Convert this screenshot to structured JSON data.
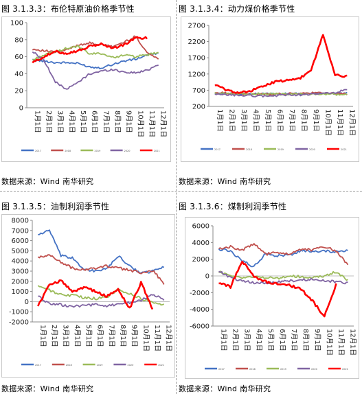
{
  "source_label": "数据来源：Wind 南华研究",
  "months": [
    "1月1日",
    "2月1日",
    "3月1日",
    "4月1日",
    "5月1日",
    "6月1日",
    "7月1日",
    "8月1日",
    "9月1日",
    "10月1日",
    "11月1日",
    "12月1日"
  ],
  "legend_years": [
    "2017",
    "2018",
    "2019",
    "2020",
    "2021"
  ],
  "colors": {
    "2017": "#4472c4",
    "2018": "#c0504d",
    "2019": "#9bbb59",
    "2020": "#8064a2",
    "2021": "#ff0000"
  },
  "chart_data": [
    {
      "type": "line",
      "title": "图 3.1.3.3：布伦特原油价格季节性",
      "x": [
        "1月1日",
        "2月1日",
        "3月1日",
        "4月1日",
        "5月1日",
        "6月1日",
        "7月1日",
        "8月1日",
        "9月1日",
        "10月1日",
        "11月1日",
        "12月1日"
      ],
      "ylim": [
        0,
        100
      ],
      "yticks": [
        0,
        20,
        40,
        60,
        80,
        100
      ],
      "series": [
        {
          "name": "2017",
          "values": [
            56,
            55,
            53,
            53,
            52,
            48,
            47,
            51,
            55,
            57,
            62,
            64
          ]
        },
        {
          "name": "2018",
          "values": [
            69,
            67,
            65,
            68,
            74,
            76,
            74,
            72,
            77,
            84,
            65,
            57
          ]
        },
        {
          "name": "2019",
          "values": [
            56,
            62,
            66,
            70,
            72,
            63,
            64,
            59,
            62,
            60,
            62,
            65
          ]
        },
        {
          "name": "2020",
          "values": [
            66,
            56,
            30,
            22,
            30,
            40,
            43,
            45,
            42,
            41,
            44,
            51
          ]
        },
        {
          "name": "2021",
          "values": [
            53,
            60,
            66,
            64,
            67,
            72,
            75,
            70,
            74,
            82,
            82,
            null
          ]
        }
      ]
    },
    {
      "type": "line",
      "title": "图 3.1.3.4：动力煤价格季节性",
      "x": [
        "1月1日",
        "2月1日",
        "3月1日",
        "4月1日",
        "5月1日",
        "6月1日",
        "7月1日",
        "8月1日",
        "9月1日",
        "10月1日",
        "11月1日",
        "12月1日"
      ],
      "ylim": [
        200,
        2700
      ],
      "yticks": [
        200,
        700,
        1200,
        1700,
        2200,
        2700
      ],
      "series": [
        {
          "name": "2017",
          "values": [
            590,
            590,
            580,
            590,
            590,
            580,
            585,
            590,
            595,
            600,
            600,
            610
          ]
        },
        {
          "name": "2018",
          "values": [
            620,
            610,
            590,
            575,
            575,
            580,
            590,
            600,
            610,
            615,
            590,
            580
          ]
        },
        {
          "name": "2019",
          "values": [
            600,
            595,
            590,
            590,
            585,
            580,
            575,
            575,
            575,
            575,
            570,
            560
          ]
        },
        {
          "name": "2020",
          "values": [
            560,
            555,
            545,
            530,
            520,
            525,
            560,
            560,
            570,
            600,
            620,
            720
          ]
        },
        {
          "name": "2021",
          "values": [
            870,
            700,
            620,
            680,
            820,
            960,
            1000,
            1050,
            1300,
            2420,
            1160,
            1130
          ]
        }
      ]
    },
    {
      "type": "line",
      "title": "图 3.1.3.5：油制利润季节性",
      "x": [
        "1月1日",
        "2月1日",
        "3月1日",
        "4月1日",
        "5月1日",
        "6月1日",
        "7月1日",
        "8月1日",
        "9月1日",
        "10月1日",
        "11月1日",
        "12月1日"
      ],
      "ylim": [
        -2000,
        8000
      ],
      "yticks": [
        -2000,
        -1000,
        0,
        1000,
        2000,
        3000,
        4000,
        5000,
        6000,
        7000,
        8000
      ],
      "series": [
        {
          "name": "2017",
          "values": [
            6600,
            7000,
            4500,
            4300,
            3200,
            3000,
            3200,
            4500,
            3500,
            2800,
            3000,
            3400
          ]
        },
        {
          "name": "2018",
          "values": [
            4300,
            4600,
            3900,
            3300,
            3100,
            3300,
            3500,
            3300,
            3100,
            2800,
            3100,
            1800
          ]
        },
        {
          "name": "2019",
          "values": [
            1600,
            1100,
            700,
            600,
            400,
            300,
            400,
            1200,
            800,
            300,
            -100,
            -300
          ]
        },
        {
          "name": "2020",
          "values": [
            500,
            -200,
            -300,
            -500,
            -400,
            -300,
            -500,
            -200,
            -100,
            100,
            700,
            200
          ]
        },
        {
          "name": "2021",
          "values": [
            -400,
            1600,
            2100,
            1000,
            1400,
            1000,
            500,
            1200,
            -700,
            1900,
            -700,
            null
          ]
        }
      ]
    },
    {
      "type": "line",
      "title": "图 3.1.3.6：煤制利润季节性",
      "x": [
        "1月1日",
        "2月1日",
        "3月1日",
        "4月1日",
        "5月1日",
        "6月1日",
        "7月1日",
        "8月1日",
        "9月1日",
        "10月1日",
        "11月1日",
        "12月1日"
      ],
      "ylim": [
        -6000,
        6000
      ],
      "yticks": [
        -6000,
        -4000,
        -2000,
        0,
        2000,
        4000,
        6000
      ],
      "series": [
        {
          "name": "2017",
          "values": [
            3200,
            3000,
            1800,
            1100,
            2700,
            2400,
            2500,
            3000,
            2900,
            3000,
            2900,
            3000
          ]
        },
        {
          "name": "2018",
          "values": [
            3300,
            3500,
            3100,
            3800,
            2600,
            2800,
            2600,
            3200,
            3100,
            3500,
            3000,
            1300
          ]
        },
        {
          "name": "2019",
          "values": [
            500,
            0,
            -200,
            -100,
            -200,
            -300,
            0,
            -100,
            -200,
            0,
            500,
            -500
          ]
        },
        {
          "name": "2020",
          "values": [
            600,
            -200,
            -600,
            -800,
            -900,
            -700,
            -600,
            -500,
            -400,
            -600,
            -700,
            -900
          ]
        },
        {
          "name": "2021",
          "values": [
            -900,
            -1300,
            1800,
            -100,
            -700,
            -1000,
            -1100,
            -1600,
            -3000,
            -4900,
            -1000,
            null
          ]
        }
      ]
    }
  ]
}
